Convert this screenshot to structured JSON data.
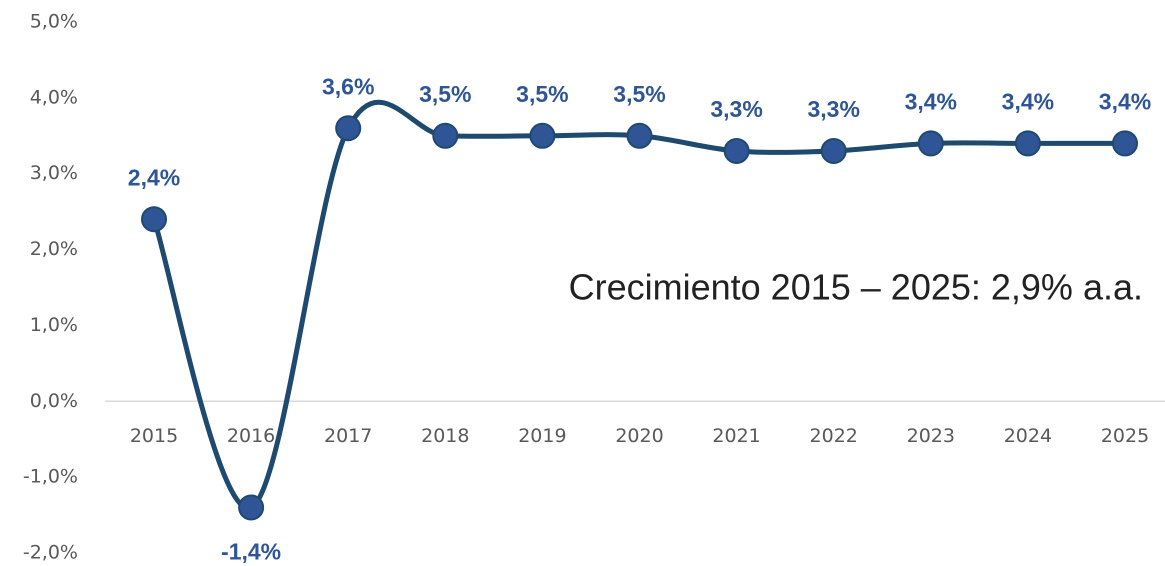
{
  "chart_data": {
    "type": "line",
    "annotation": "Crecimiento 2015 – 2025: 2,9% a.a.",
    "categories": [
      "2015",
      "2016",
      "2017",
      "2018",
      "2019",
      "2020",
      "2021",
      "2022",
      "2023",
      "2024",
      "2025"
    ],
    "series": [
      {
        "color": "#1f4a70",
        "marker_color": "#2f5597",
        "values": [
          2.4,
          -1.4,
          3.6,
          3.5,
          3.5,
          3.5,
          3.3,
          3.3,
          3.4,
          3.4,
          3.4
        ],
        "value_labels": [
          "2,4%",
          "-1,4%",
          "3,6%",
          "3,5%",
          "3,5%",
          "3,5%",
          "3,3%",
          "3,3%",
          "3,4%",
          "3,4%",
          "3,4%"
        ]
      }
    ],
    "ylim": [
      -2,
      5
    ],
    "yticks": [
      {
        "value": -2,
        "label": "-2,0%"
      },
      {
        "value": -1,
        "label": "-1,0%"
      },
      {
        "value": 0,
        "label": "0,0%"
      },
      {
        "value": 1,
        "label": "1,0%"
      },
      {
        "value": 2,
        "label": "2,0%"
      },
      {
        "value": 3,
        "label": "3,0%"
      },
      {
        "value": 4,
        "label": "4,0%"
      },
      {
        "value": 5,
        "label": "5,0%"
      }
    ],
    "smooth": true
  }
}
